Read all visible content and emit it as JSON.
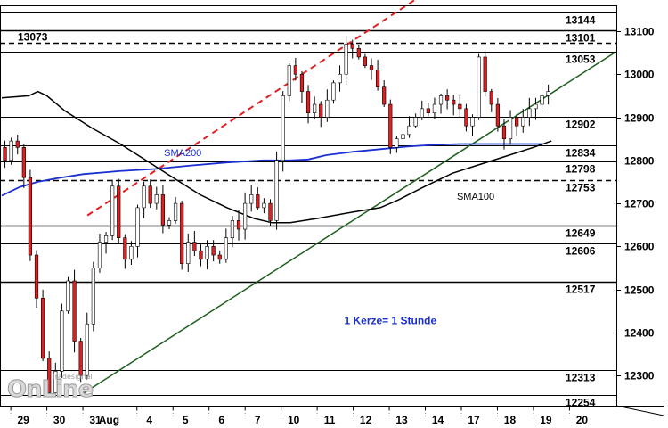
{
  "chart_data": {
    "type": "candlestick",
    "title": "",
    "xlabel": "",
    "ylabel": "",
    "ylim": [
      12230,
      13160
    ],
    "y_ticks": [
      12300,
      12400,
      12500,
      12600,
      12700,
      12800,
      12900,
      13000,
      13100
    ],
    "x_ticks": [
      {
        "label": "29",
        "x": 2
      },
      {
        "label": "30",
        "x": 10
      },
      {
        "label": "31",
        "x": 18
      },
      {
        "label": "Aug",
        "x": 26.5
      },
      {
        "label": "4",
        "x": 30
      },
      {
        "label": "5",
        "x": 38
      },
      {
        "label": "6",
        "x": 46
      },
      {
        "label": "7",
        "x": 54
      },
      {
        "label": "10",
        "x": 62
      },
      {
        "label": "11",
        "x": 70
      },
      {
        "label": "12",
        "x": 78
      },
      {
        "label": "13",
        "x": 86
      },
      {
        "label": "14",
        "x": 94
      },
      {
        "label": "17",
        "x": 102
      },
      {
        "label": "18",
        "x": 110
      },
      {
        "label": "19",
        "x": 118
      },
      {
        "label": "20",
        "x": 126
      }
    ],
    "levels": [
      {
        "value": 13144,
        "label": "13144",
        "style": "solid"
      },
      {
        "value": 13101,
        "label": "13101",
        "style": "solid-bold"
      },
      {
        "value": 13073,
        "label": "13073",
        "style": "dashed",
        "label_side": "left"
      },
      {
        "value": 13053,
        "label": "13053",
        "style": "solid"
      },
      {
        "value": 12902,
        "label": "12902",
        "style": "solid"
      },
      {
        "value": 12834,
        "label": "12834",
        "style": "solid"
      },
      {
        "value": 12798,
        "label": "12798",
        "style": "solid"
      },
      {
        "value": 12753,
        "label": "12753",
        "style": "dashed"
      },
      {
        "value": 12649,
        "label": "12649",
        "style": "solid-bold"
      },
      {
        "value": 12606,
        "label": "12606",
        "style": "solid"
      },
      {
        "value": 12517,
        "label": "12517",
        "style": "solid-bold"
      },
      {
        "value": 12313,
        "label": "12313",
        "style": "solid"
      },
      {
        "value": 12254,
        "label": "12254",
        "style": "solid"
      }
    ],
    "candles_x_range": [
      0,
      122
    ],
    "close_path": [
      12830,
      12800,
      12845,
      12830,
      12760,
      12580,
      12480,
      12340,
      12260,
      12310,
      12450,
      12520,
      12380,
      12300,
      12420,
      12550,
      12610,
      12625,
      12740,
      12620,
      12570,
      12600,
      12690,
      12740,
      12700,
      12720,
      12650,
      12660,
      12700,
      12560,
      12610,
      12590,
      12570,
      12600,
      12580,
      12570,
      12620,
      12660,
      12640,
      12700,
      12720,
      12690,
      12700,
      12660,
      12800,
      12950,
      13020,
      13000,
      12960,
      12910,
      12930,
      12900,
      12940,
      12980,
      13000,
      13070,
      13060,
      13040,
      13020,
      13010,
      12970,
      12930,
      12830,
      12850,
      12860,
      12880,
      12900,
      12920,
      12910,
      12930,
      12950,
      12940,
      12930,
      12920,
      12880,
      12900,
      13040,
      12960,
      12930,
      12880,
      12850,
      12900,
      12880,
      12900,
      12920,
      12930,
      12950,
      12960
    ],
    "series": [
      {
        "name": "SMA200",
        "color": "#1a2fd0",
        "label_at": [
          36,
          12810
        ],
        "points": [
          [
            0,
            12718
          ],
          [
            4,
            12738
          ],
          [
            8,
            12750
          ],
          [
            12,
            12758
          ],
          [
            18,
            12768
          ],
          [
            26,
            12775
          ],
          [
            34,
            12780
          ],
          [
            42,
            12788
          ],
          [
            50,
            12795
          ],
          [
            58,
            12800
          ],
          [
            64,
            12800
          ],
          [
            68,
            12802
          ],
          [
            72,
            12812
          ],
          [
            78,
            12820
          ],
          [
            84,
            12826
          ],
          [
            90,
            12832
          ],
          [
            96,
            12836
          ],
          [
            102,
            12838
          ],
          [
            108,
            12838
          ],
          [
            114,
            12838
          ],
          [
            120,
            12838
          ]
        ]
      },
      {
        "name": "SMA100",
        "color": "#000000",
        "label_at": [
          101,
          12708
        ],
        "points": [
          [
            0,
            12945
          ],
          [
            6,
            12950
          ],
          [
            8,
            12960
          ],
          [
            10,
            12950
          ],
          [
            14,
            12915
          ],
          [
            20,
            12875
          ],
          [
            26,
            12840
          ],
          [
            32,
            12800
          ],
          [
            38,
            12760
          ],
          [
            44,
            12720
          ],
          [
            50,
            12690
          ],
          [
            56,
            12665
          ],
          [
            60,
            12655
          ],
          [
            64,
            12655
          ],
          [
            70,
            12665
          ],
          [
            78,
            12680
          ],
          [
            84,
            12690
          ],
          [
            88,
            12708
          ],
          [
            94,
            12740
          ],
          [
            100,
            12770
          ],
          [
            106,
            12790
          ],
          [
            112,
            12810
          ],
          [
            118,
            12830
          ],
          [
            122,
            12845
          ]
        ]
      }
    ],
    "trendlines": [
      {
        "style": "solid",
        "color": "#1e5e1e",
        "from": [
          18,
          12258
        ],
        "to": [
          136,
          13050
        ]
      },
      {
        "style": "dashed",
        "color": "#e02020",
        "from": [
          19,
          12672
        ],
        "to": [
          100,
          13230
        ]
      }
    ],
    "annotation": {
      "text": "1 Kerze= 1 Stunde",
      "color": "#1a2fd0",
      "at": [
        76,
        12420
      ]
    },
    "grid": false,
    "legend": "none",
    "logo_text": "Tradesignal OnLine"
  }
}
